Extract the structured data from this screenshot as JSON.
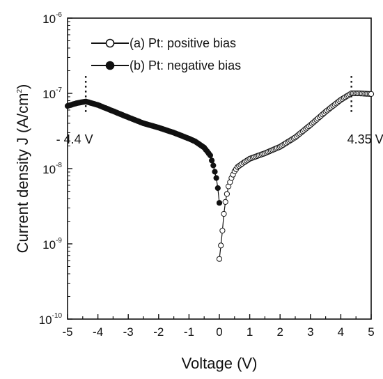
{
  "chart_data": {
    "type": "scatter",
    "xlabel": "Voltage (V)",
    "ylabel": "Current density J (A/cm",
    "ylabel_sup": "2",
    "ylabel_suffix": ")",
    "xlim": [
      -5,
      5
    ],
    "ylim": [
      1e-10,
      1e-06
    ],
    "yscale": "log",
    "x_ticks": [
      -5,
      -4,
      -3,
      -2,
      -1,
      0,
      1,
      2,
      3,
      4,
      5
    ],
    "y_ticks": [
      {
        "value": 1e-10,
        "base": "10",
        "exp": "-10"
      },
      {
        "value": 1e-09,
        "base": "10",
        "exp": "-9"
      },
      {
        "value": 1e-08,
        "base": "10",
        "exp": "-8"
      },
      {
        "value": 1e-07,
        "base": "10",
        "exp": "-7"
      },
      {
        "value": 1e-06,
        "base": "10",
        "exp": "-6"
      }
    ],
    "grid": false,
    "legend_position": "top-left",
    "series": [
      {
        "name": "(a) Pt: positive bias",
        "marker": "open-circle",
        "color": "#111111",
        "points": [
          [
            0.0,
            6.3e-10
          ],
          [
            0.05,
            9.5e-10
          ],
          [
            0.1,
            1.5e-09
          ],
          [
            0.15,
            2.5e-09
          ],
          [
            0.2,
            3.6e-09
          ],
          [
            0.25,
            4.6e-09
          ],
          [
            0.3,
            5.8e-09
          ],
          [
            0.4,
            7.5e-09
          ],
          [
            0.5,
            9.2e-09
          ],
          [
            0.6,
            1.05e-08
          ],
          [
            0.8,
            1.2e-08
          ],
          [
            1.0,
            1.35e-08
          ],
          [
            1.5,
            1.6e-08
          ],
          [
            2.0,
            1.95e-08
          ],
          [
            2.5,
            2.6e-08
          ],
          [
            3.0,
            3.8e-08
          ],
          [
            3.5,
            5.7e-08
          ],
          [
            4.0,
            8.2e-08
          ],
          [
            4.35,
            1e-07
          ],
          [
            4.6,
            1e-07
          ],
          [
            5.0,
            9.8e-08
          ]
        ]
      },
      {
        "name": "(b) Pt: negative bias",
        "marker": "filled-circle",
        "color": "#111111",
        "points": [
          [
            0.0,
            3.5e-09
          ],
          [
            -0.05,
            5.5e-09
          ],
          [
            -0.1,
            7.5e-09
          ],
          [
            -0.2,
            1.1e-08
          ],
          [
            -0.3,
            1.5e-08
          ],
          [
            -0.5,
            1.9e-08
          ],
          [
            -0.8,
            2.3e-08
          ],
          [
            -1.0,
            2.5e-08
          ],
          [
            -1.5,
            3e-08
          ],
          [
            -2.0,
            3.5e-08
          ],
          [
            -2.5,
            4e-08
          ],
          [
            -3.0,
            4.8e-08
          ],
          [
            -3.5,
            5.8e-08
          ],
          [
            -4.0,
            7e-08
          ],
          [
            -4.4,
            7.8e-08
          ],
          [
            -4.7,
            7.4e-08
          ],
          [
            -5.0,
            6.8e-08
          ]
        ]
      }
    ],
    "annotations": [
      {
        "text": "- 4.4 V",
        "x": -4.4,
        "y_top": 1.7e-07,
        "y_bottom": 5.5e-08
      },
      {
        "text": "4.35 V",
        "x": 4.35,
        "y_top": 1.7e-07,
        "y_bottom": 5.5e-08
      }
    ]
  }
}
